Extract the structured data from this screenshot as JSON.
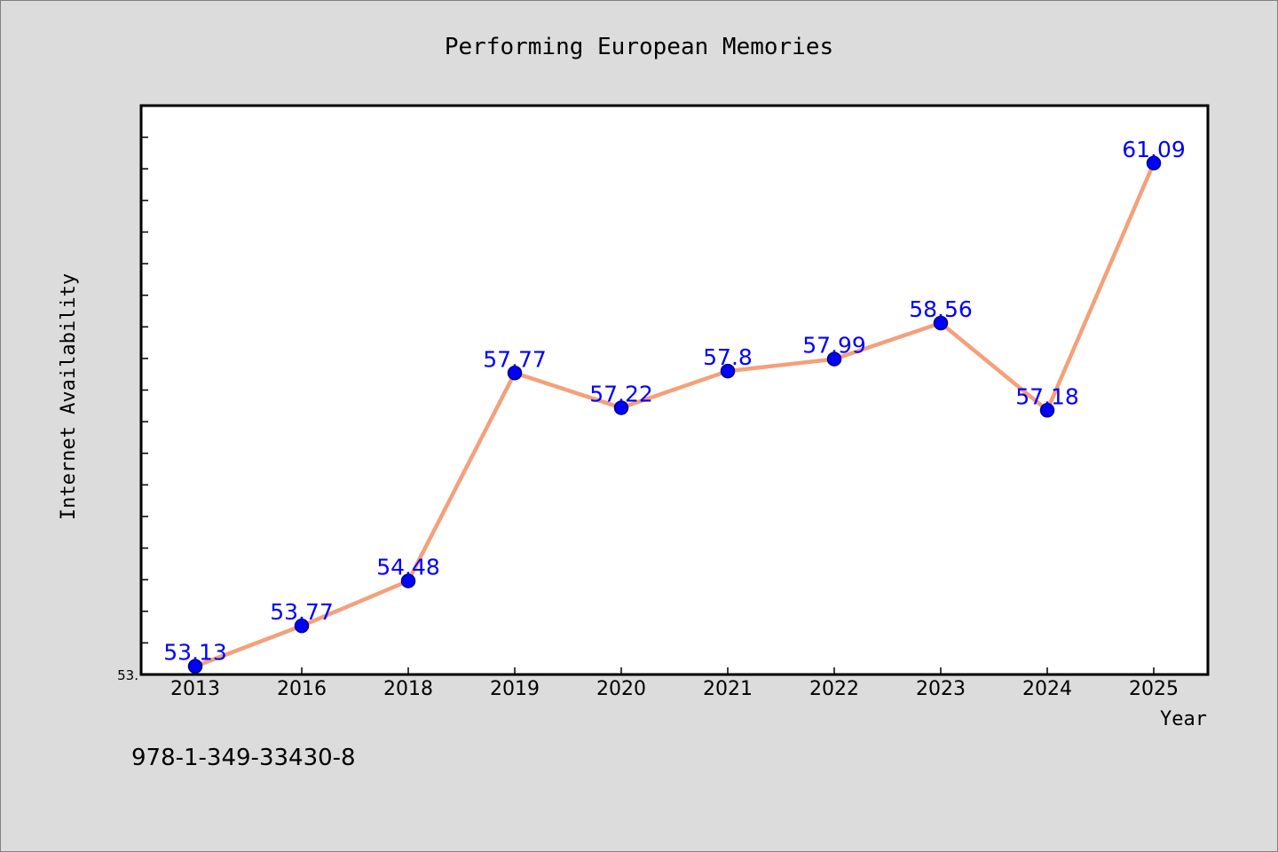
{
  "chart_data": {
    "type": "line",
    "title": "Performing European Memories",
    "xlabel": "Year",
    "ylabel": "Internet Availability",
    "categories": [
      "2013",
      "2016",
      "2018",
      "2019",
      "2020",
      "2021",
      "2022",
      "2023",
      "2024",
      "2025"
    ],
    "series": [
      {
        "values": [
          53.13,
          53.77,
          54.48,
          57.77,
          57.22,
          57.8,
          57.99,
          58.56,
          57.18,
          61.09
        ],
        "labels": [
          "53.13",
          "53.77",
          "54.48",
          "57.77",
          "57.22",
          "57.8",
          "57.99",
          "58.56",
          "57.18",
          "61.09"
        ]
      }
    ],
    "ylim": [
      53.0,
      62.0
    ],
    "y_tick_label": "53.",
    "grid": false,
    "legend": "none",
    "colors": {
      "line": "#f4a07a",
      "marker_fill": "#0000ff",
      "marker_edge": "#000080",
      "data_label": "#0000ff",
      "plot_background": "#ffffff",
      "page_background": "#dcdcdc"
    }
  },
  "footer": {
    "isbn": "978-1-349-33430-8"
  }
}
